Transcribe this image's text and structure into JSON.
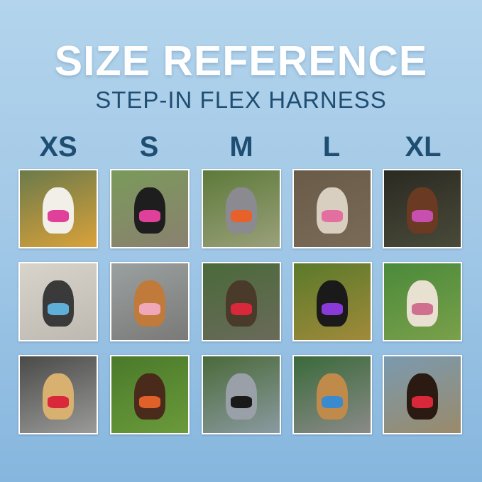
{
  "header": {
    "title": "SIZE REFERENCE",
    "subtitle": "STEP-IN FLEX HARNESS"
  },
  "sizes": [
    "XS",
    "S",
    "M",
    "L",
    "XL"
  ],
  "colors": {
    "title": "#ffffff",
    "subtitle": "#1f4e73",
    "size_label": "#1f4e73"
  },
  "photos": [
    [
      {
        "bg": "#6b7a4a",
        "bg2": "#d9a23a",
        "dog": "#f2efe8",
        "harness": "#e0409a"
      },
      {
        "bg": "#7a9a5a",
        "bg2": "#8a8070",
        "dog": "#1e1e1e",
        "harness": "#e0409a"
      },
      {
        "bg": "#5d7a3a",
        "bg2": "#9aa07a",
        "dog": "#8a8a90",
        "harness": "#e8602a"
      },
      {
        "bg": "#6a5a48",
        "bg2": "#7a6a58",
        "dog": "#d8cfc0",
        "harness": "#e26fa0"
      },
      {
        "bg": "#2a2a22",
        "bg2": "#4a4a3a",
        "dog": "#6b3a22",
        "harness": "#c74fb0"
      }
    ],
    [
      {
        "bg": "#d8d4cc",
        "bg2": "#bdb8b0",
        "dog": "#3a3a3a",
        "harness": "#5fb0d8"
      },
      {
        "bg": "#9aa0a0",
        "bg2": "#7a7a78",
        "dog": "#c07a3a",
        "harness": "#f0a8b8"
      },
      {
        "bg": "#4a6a3a",
        "bg2": "#6a6a5a",
        "dog": "#4a3a2a",
        "harness": "#d8283a"
      },
      {
        "bg": "#5a7a2a",
        "bg2": "#a08a3a",
        "dog": "#1a1a1a",
        "harness": "#8a3ad8"
      },
      {
        "bg": "#4a8a3a",
        "bg2": "#7aa04a",
        "dog": "#e8e0d0",
        "harness": "#d07090"
      }
    ],
    [
      {
        "bg": "#4a4a48",
        "bg2": "#9a9a98",
        "dog": "#d8b070",
        "harness": "#d8283a"
      },
      {
        "bg": "#4a7a2a",
        "bg2": "#6a9a3a",
        "dog": "#4a2a1a",
        "harness": "#e0602a"
      },
      {
        "bg": "#4a6a3a",
        "bg2": "#8a9aa0",
        "dog": "#9aa0a8",
        "harness": "#1a1a1a"
      },
      {
        "bg": "#3a6a3a",
        "bg2": "#8a8a88",
        "dog": "#c08a4a",
        "harness": "#3a8ad0"
      },
      {
        "bg": "#7a9ab0",
        "bg2": "#9a8a6a",
        "dog": "#2a1a12",
        "harness": "#d8283a"
      }
    ]
  ]
}
